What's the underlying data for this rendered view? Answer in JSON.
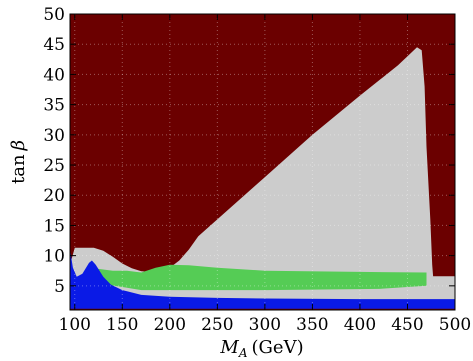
{
  "chart_data": {
    "type": "heatmap",
    "xlabel_main": "M",
    "xlabel_sub": "A",
    "xlabel_unit": "(GeV)",
    "ylabel_main": "tan",
    "ylabel_greek": "β",
    "xlim": [
      95,
      500
    ],
    "ylim": [
      1,
      50
    ],
    "x_ticks": [
      100,
      150,
      200,
      250,
      300,
      350,
      400,
      450,
      500
    ],
    "y_ticks": [
      5,
      10,
      15,
      20,
      25,
      30,
      35,
      40,
      45,
      50
    ],
    "grid": true,
    "colors": {
      "excluded": "#6b0000",
      "gray_region": "#cccccc",
      "green_region": "#55cc55",
      "blue_region": "#0a1ae6"
    },
    "regions": [
      {
        "color_key": "gray_region",
        "polygon": [
          [
            95,
            8.5
          ],
          [
            100,
            11.3
          ],
          [
            120,
            11.3
          ],
          [
            130,
            10.8
          ],
          [
            140,
            9.8
          ],
          [
            150,
            8.7
          ],
          [
            160,
            7.9
          ],
          [
            170,
            7.4
          ],
          [
            180,
            7.3
          ],
          [
            190,
            7.5
          ],
          [
            200,
            8.0
          ],
          [
            210,
            9.2
          ],
          [
            220,
            11.0
          ],
          [
            230,
            13.2
          ],
          [
            250,
            16.0
          ],
          [
            300,
            23.0
          ],
          [
            350,
            30.0
          ],
          [
            400,
            36.5
          ],
          [
            440,
            41.5
          ],
          [
            460,
            44.5
          ],
          [
            465,
            44.0
          ],
          [
            468,
            38.0
          ],
          [
            470,
            28.0
          ],
          [
            474,
            16.0
          ],
          [
            476,
            8.5
          ],
          [
            477,
            6.6
          ],
          [
            500,
            6.6
          ],
          [
            500,
            2.3
          ],
          [
            95,
            2.3
          ]
        ]
      },
      {
        "color_key": "green_region",
        "polygon": [
          [
            115,
            6.8
          ],
          [
            125,
            7.8
          ],
          [
            140,
            7.5
          ],
          [
            155,
            7.5
          ],
          [
            170,
            7.2
          ],
          [
            185,
            8.0
          ],
          [
            200,
            8.5
          ],
          [
            220,
            8.4
          ],
          [
            250,
            8.0
          ],
          [
            300,
            7.5
          ],
          [
            400,
            7.3
          ],
          [
            470,
            7.2
          ],
          [
            470,
            5.0
          ],
          [
            420,
            4.5
          ],
          [
            300,
            4.3
          ],
          [
            200,
            4.3
          ],
          [
            170,
            4.3
          ],
          [
            150,
            4.8
          ],
          [
            130,
            5.3
          ],
          [
            120,
            6.0
          ]
        ]
      },
      {
        "color_key": "blue_region",
        "polygon": [
          [
            95,
            11.0
          ],
          [
            98,
            8.0
          ],
          [
            102,
            6.5
          ],
          [
            108,
            7.0
          ],
          [
            115,
            8.8
          ],
          [
            118,
            9.2
          ],
          [
            122,
            8.5
          ],
          [
            130,
            6.5
          ],
          [
            138,
            5.2
          ],
          [
            150,
            4.3
          ],
          [
            170,
            3.5
          ],
          [
            200,
            3.2
          ],
          [
            250,
            3.0
          ],
          [
            300,
            2.9
          ],
          [
            400,
            2.8
          ],
          [
            500,
            2.8
          ],
          [
            500,
            1.2
          ],
          [
            95,
            1.2
          ]
        ]
      }
    ]
  }
}
